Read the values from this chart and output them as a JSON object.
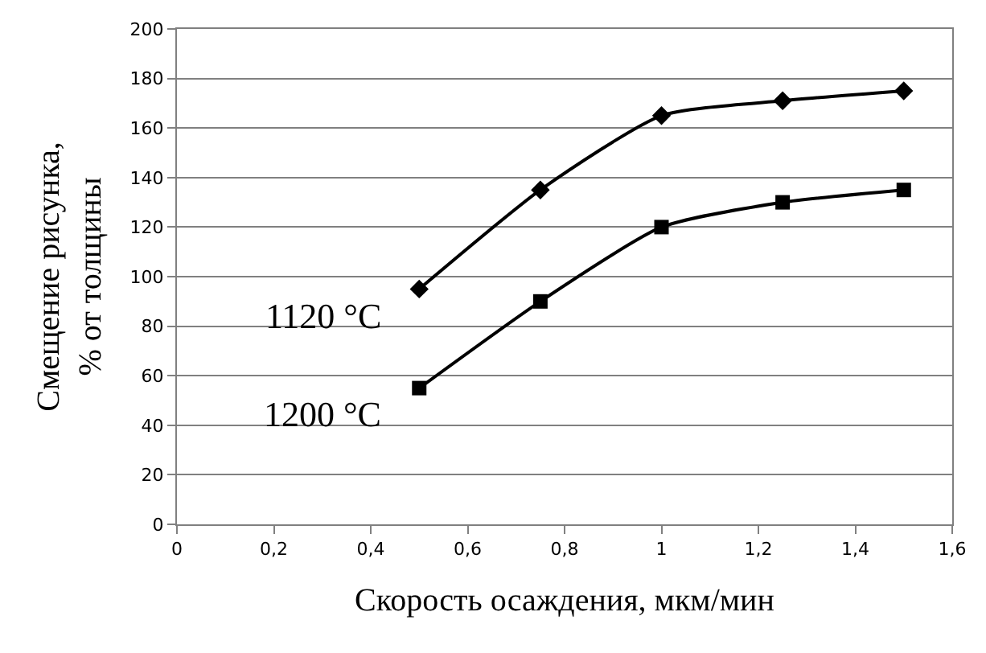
{
  "chart_data": {
    "type": "line",
    "xlabel": "Скорость осаждения, мкм/мин",
    "ylabel": "Смещение рисунка,\n% от толщины",
    "x": [
      0.5,
      0.75,
      1,
      1.25,
      1.5
    ],
    "series": [
      {
        "name": "1120 °C",
        "color": "#000000",
        "marker": "diamond",
        "values": [
          95,
          135,
          165,
          171,
          175
        ]
      },
      {
        "name": "1200 °C",
        "color": "#000000",
        "marker": "square",
        "values": [
          55,
          90,
          120,
          130,
          135
        ]
      }
    ],
    "xlim": [
      0,
      1.6
    ],
    "xticks": [
      0,
      {
        "value": 0.2,
        "label": "0,2"
      },
      {
        "value": 0.4,
        "label": "0,4"
      },
      {
        "value": 0.6,
        "label": "0,6"
      },
      {
        "value": 0.8,
        "label": "0,8"
      },
      1,
      {
        "value": 1.2,
        "label": "1,2"
      },
      {
        "value": 1.4,
        "label": "1,4"
      },
      {
        "value": 1.6,
        "label": "1,6"
      }
    ],
    "ylim": [
      0,
      200
    ],
    "yticks": [
      0,
      20,
      40,
      60,
      80,
      100,
      120,
      140,
      160,
      180,
      200
    ],
    "grid": "y",
    "legend": false,
    "line_style": "solid"
  }
}
